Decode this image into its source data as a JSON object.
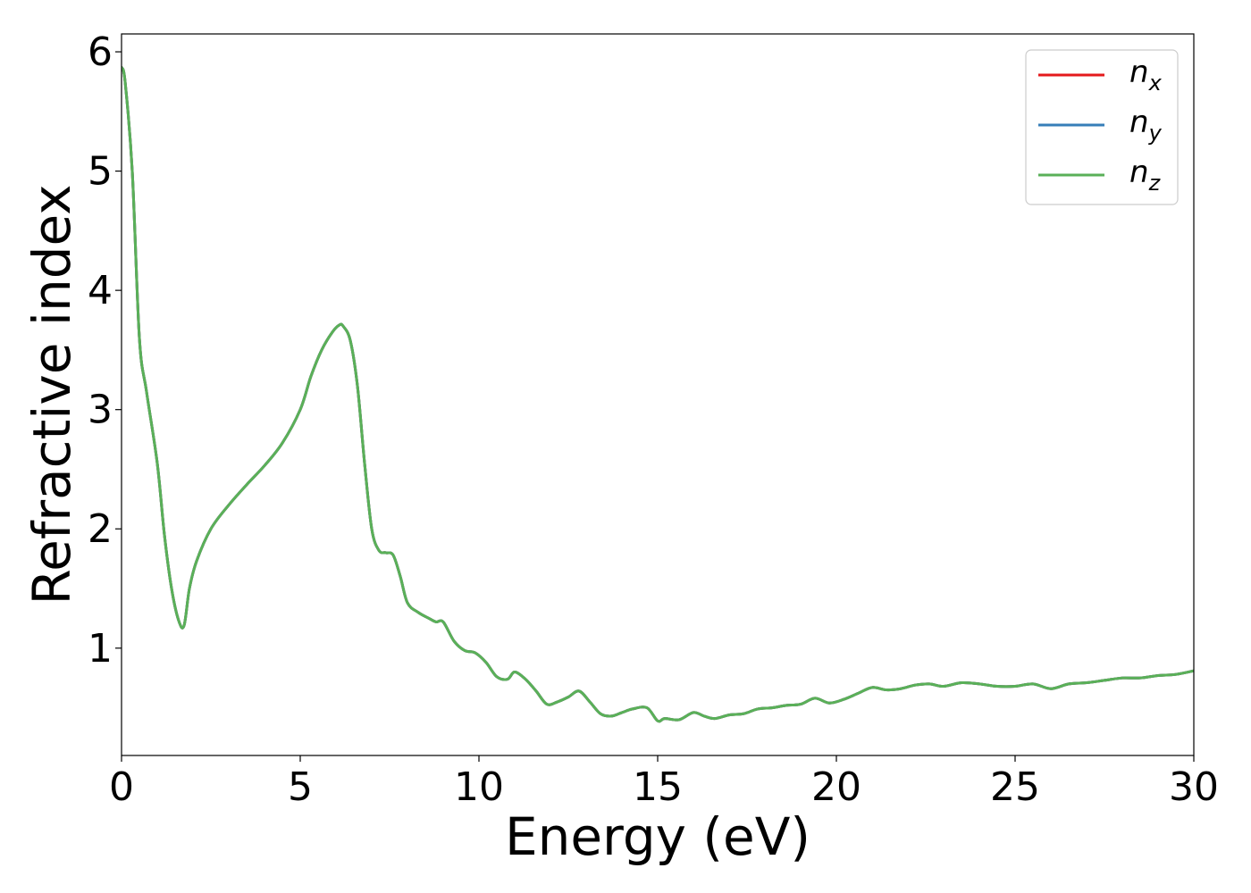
{
  "chart_data": {
    "type": "line",
    "xlabel": "Energy (eV)",
    "ylabel": "Refractive index",
    "xlim": [
      0,
      30
    ],
    "ylim": [
      0.1,
      6.15
    ],
    "xticks": [
      "0",
      "5",
      "10",
      "15",
      "20",
      "25",
      "30"
    ],
    "yticks": [
      "1",
      "2",
      "3",
      "4",
      "5",
      "6"
    ],
    "grid": false,
    "legend_position": "top-right",
    "x": [
      0,
      0.1,
      0.3,
      0.5,
      0.7,
      1.0,
      1.2,
      1.4,
      1.6,
      1.75,
      1.9,
      2.1,
      2.5,
      3.0,
      3.5,
      4.0,
      4.5,
      5.0,
      5.3,
      5.6,
      5.9,
      6.1,
      6.2,
      6.4,
      6.6,
      6.8,
      7.0,
      7.2,
      7.4,
      7.6,
      7.8,
      8.0,
      8.3,
      8.6,
      8.8,
      9.0,
      9.3,
      9.6,
      9.9,
      10.2,
      10.5,
      10.8,
      11.0,
      11.3,
      11.6,
      11.9,
      12.2,
      12.5,
      12.8,
      13.1,
      13.4,
      13.7,
      14.0,
      14.3,
      14.7,
      15.0,
      15.2,
      15.6,
      16.0,
      16.3,
      16.6,
      17.0,
      17.4,
      17.8,
      18.2,
      18.6,
      19.0,
      19.4,
      19.8,
      20.2,
      20.6,
      21.0,
      21.4,
      21.8,
      22.2,
      22.6,
      23.0,
      23.5,
      24.0,
      24.5,
      25.0,
      25.5,
      26.0,
      26.5,
      27.0,
      27.5,
      28.0,
      28.5,
      29.0,
      29.5,
      30.0
    ],
    "series": [
      {
        "name": "n_x",
        "label_base": "n",
        "label_sub": "x",
        "color": "#e41a1c",
        "y": [
          5.87,
          5.75,
          5.0,
          3.6,
          3.15,
          2.55,
          1.95,
          1.5,
          1.23,
          1.19,
          1.5,
          1.73,
          2.0,
          2.2,
          2.37,
          2.53,
          2.72,
          3.0,
          3.28,
          3.5,
          3.65,
          3.71,
          3.7,
          3.58,
          3.2,
          2.55,
          2.0,
          1.82,
          1.8,
          1.78,
          1.6,
          1.38,
          1.3,
          1.25,
          1.22,
          1.22,
          1.06,
          0.98,
          0.96,
          0.88,
          0.76,
          0.74,
          0.8,
          0.74,
          0.64,
          0.53,
          0.55,
          0.59,
          0.64,
          0.55,
          0.45,
          0.43,
          0.46,
          0.49,
          0.5,
          0.39,
          0.41,
          0.4,
          0.46,
          0.43,
          0.41,
          0.44,
          0.45,
          0.49,
          0.5,
          0.52,
          0.53,
          0.58,
          0.54,
          0.57,
          0.62,
          0.67,
          0.65,
          0.66,
          0.69,
          0.7,
          0.68,
          0.71,
          0.7,
          0.68,
          0.68,
          0.7,
          0.66,
          0.7,
          0.71,
          0.73,
          0.75,
          0.75,
          0.77,
          0.78,
          0.81
        ]
      },
      {
        "name": "n_y",
        "label_base": "n",
        "label_sub": "y",
        "color": "#377eb8",
        "y": [
          5.87,
          5.75,
          5.0,
          3.6,
          3.15,
          2.55,
          1.95,
          1.5,
          1.23,
          1.19,
          1.5,
          1.73,
          2.0,
          2.2,
          2.37,
          2.53,
          2.72,
          3.0,
          3.28,
          3.5,
          3.65,
          3.71,
          3.7,
          3.58,
          3.2,
          2.55,
          2.0,
          1.82,
          1.8,
          1.78,
          1.6,
          1.38,
          1.3,
          1.25,
          1.22,
          1.22,
          1.06,
          0.98,
          0.96,
          0.88,
          0.76,
          0.74,
          0.8,
          0.74,
          0.64,
          0.53,
          0.55,
          0.59,
          0.64,
          0.55,
          0.45,
          0.43,
          0.46,
          0.49,
          0.5,
          0.39,
          0.41,
          0.4,
          0.46,
          0.43,
          0.41,
          0.44,
          0.45,
          0.49,
          0.5,
          0.52,
          0.53,
          0.58,
          0.54,
          0.57,
          0.62,
          0.67,
          0.65,
          0.66,
          0.69,
          0.7,
          0.68,
          0.71,
          0.7,
          0.68,
          0.68,
          0.7,
          0.66,
          0.7,
          0.71,
          0.73,
          0.75,
          0.75,
          0.77,
          0.78,
          0.81
        ]
      },
      {
        "name": "n_z",
        "label_base": "n",
        "label_sub": "z",
        "color": "#5ab058",
        "y": [
          5.87,
          5.75,
          5.0,
          3.6,
          3.15,
          2.55,
          1.95,
          1.5,
          1.23,
          1.19,
          1.5,
          1.73,
          2.0,
          2.2,
          2.37,
          2.53,
          2.72,
          3.0,
          3.28,
          3.5,
          3.65,
          3.71,
          3.7,
          3.58,
          3.2,
          2.55,
          2.0,
          1.82,
          1.8,
          1.78,
          1.6,
          1.38,
          1.3,
          1.25,
          1.22,
          1.22,
          1.06,
          0.98,
          0.96,
          0.88,
          0.76,
          0.74,
          0.8,
          0.74,
          0.64,
          0.53,
          0.55,
          0.59,
          0.64,
          0.55,
          0.45,
          0.43,
          0.46,
          0.49,
          0.5,
          0.39,
          0.41,
          0.4,
          0.46,
          0.43,
          0.41,
          0.44,
          0.45,
          0.49,
          0.5,
          0.52,
          0.53,
          0.58,
          0.54,
          0.57,
          0.62,
          0.67,
          0.65,
          0.66,
          0.69,
          0.7,
          0.68,
          0.71,
          0.7,
          0.68,
          0.68,
          0.7,
          0.66,
          0.7,
          0.71,
          0.73,
          0.75,
          0.75,
          0.77,
          0.78,
          0.81
        ]
      }
    ]
  }
}
